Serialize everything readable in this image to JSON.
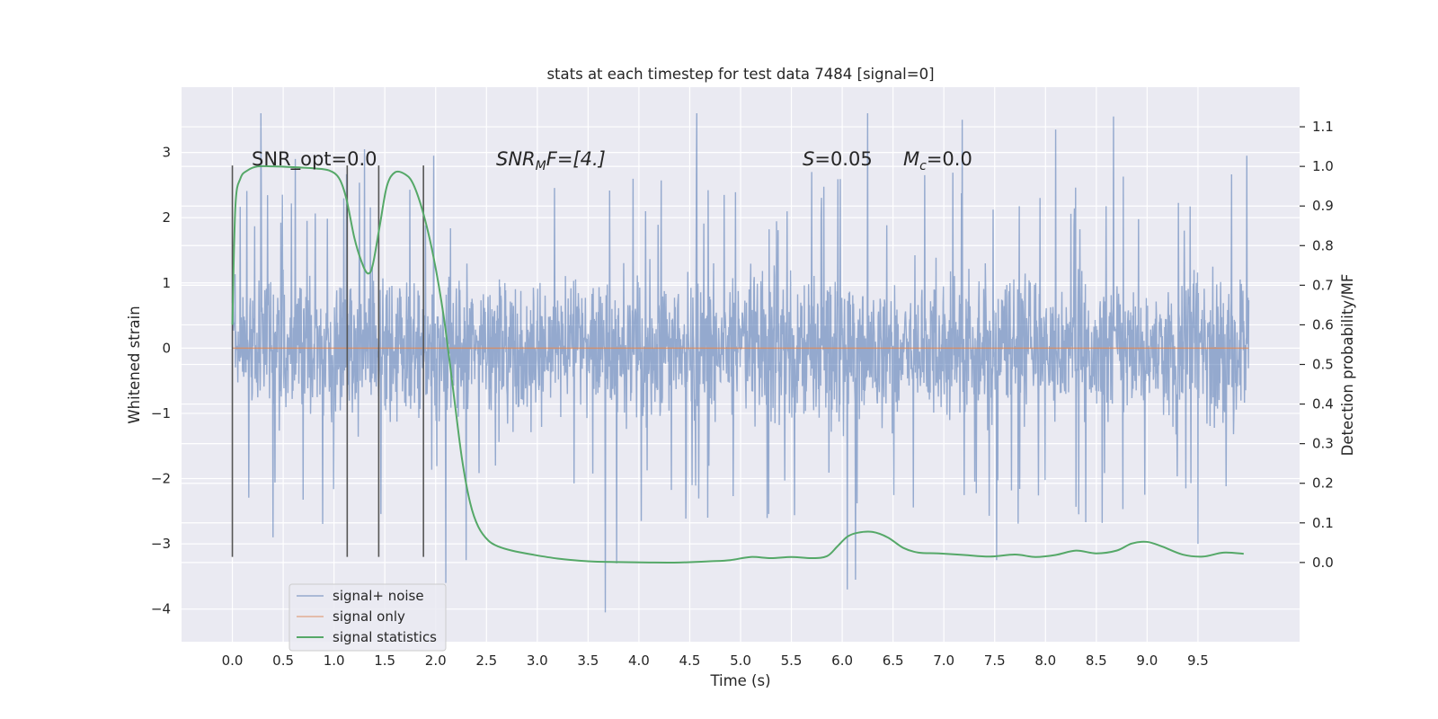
{
  "chart_data": {
    "type": "line",
    "title": "stats at each timestep for test data 7484 [signal=0]",
    "xlabel": "Time (s)",
    "ylabel": "Whitened strain",
    "y2label": "Detection probability/MF",
    "xlim": [
      -0.5,
      10.5
    ],
    "ylim": [
      -4.5,
      4.0
    ],
    "y2lim": [
      -0.2,
      1.2
    ],
    "x_ticks": [
      0.0,
      0.5,
      1.0,
      1.5,
      2.0,
      2.5,
      3.0,
      3.5,
      4.0,
      4.5,
      5.0,
      5.5,
      6.0,
      6.5,
      7.0,
      7.5,
      8.0,
      8.5,
      9.0,
      9.5
    ],
    "x_tick_labels": [
      "0.0",
      "0.5",
      "1.0",
      "1.5",
      "2.0",
      "2.5",
      "3.0",
      "3.5",
      "4.0",
      "4.5",
      "5.0",
      "5.5",
      "6.0",
      "6.5",
      "7.0",
      "7.5",
      "8.0",
      "8.5",
      "9.0",
      "9.5"
    ],
    "y_ticks": [
      -4,
      -3,
      -2,
      -1,
      0,
      1,
      2,
      3
    ],
    "y_tick_labels": [
      "−4",
      "−3",
      "−2",
      "−1",
      "0",
      "1",
      "2",
      "3"
    ],
    "y2_ticks": [
      0.0,
      0.1,
      0.2,
      0.3,
      0.4,
      0.5,
      0.6,
      0.7,
      0.8,
      0.9,
      1.0,
      1.1
    ],
    "y2_tick_labels": [
      "0.0",
      "0.1",
      "0.2",
      "0.3",
      "0.4",
      "0.5",
      "0.6",
      "0.7",
      "0.8",
      "0.9",
      "1.0",
      "1.1"
    ],
    "grid": true,
    "legend_position": "lower-left",
    "annotations": {
      "snr_opt": "SNR_opt=0.0",
      "snr_mf_base": "SNR",
      "snr_mf_sub": "M",
      "snr_mf_rest": "F=[4.]",
      "s_label": "S",
      "s_value": "=0.05",
      "mc_base": "M",
      "mc_sub": "c",
      "mc_value": "=0.0"
    },
    "vertical_markers_x": [
      0.0,
      1.13,
      1.44,
      1.88
    ],
    "vertical_markers_range": [
      -3.2,
      2.8
    ],
    "series": [
      {
        "name": "signal+ noise",
        "color": "#4c72b0",
        "x_range": [
          0.0,
          10.0
        ],
        "band_envelope_upper": 1.6,
        "band_envelope_lower": -1.5,
        "peaks": [
          {
            "x": 0.28,
            "y": 3.6
          },
          {
            "x": 0.62,
            "y": 2.9
          },
          {
            "x": 1.3,
            "y": 3.05
          },
          {
            "x": 1.98,
            "y": 2.95
          },
          {
            "x": 4.57,
            "y": 3.6
          },
          {
            "x": 5.7,
            "y": 2.7
          },
          {
            "x": 6.25,
            "y": 3.6
          },
          {
            "x": 7.18,
            "y": 3.5
          },
          {
            "x": 8.1,
            "y": 3.35
          },
          {
            "x": 8.67,
            "y": 3.55
          },
          {
            "x": 9.98,
            "y": 2.95
          }
        ],
        "troughs": [
          {
            "x": 0.4,
            "y": -2.9
          },
          {
            "x": 2.1,
            "y": -3.6
          },
          {
            "x": 2.3,
            "y": -3.25
          },
          {
            "x": 3.67,
            "y": -4.05
          },
          {
            "x": 3.78,
            "y": -3.3
          },
          {
            "x": 6.05,
            "y": -3.7
          },
          {
            "x": 6.13,
            "y": -3.55
          },
          {
            "x": 7.52,
            "y": -3.25
          },
          {
            "x": 9.5,
            "y": -3.0
          }
        ]
      },
      {
        "name": "signal only",
        "color": "#dd8452",
        "x": [
          0.0,
          10.0
        ],
        "y": [
          0.0,
          0.0
        ]
      },
      {
        "name": "signal statistics",
        "color": "#55a868",
        "axis": "right",
        "x": [
          0.0,
          0.03,
          0.08,
          0.15,
          0.25,
          0.4,
          0.6,
          0.8,
          0.95,
          1.05,
          1.12,
          1.2,
          1.27,
          1.33,
          1.38,
          1.45,
          1.52,
          1.6,
          1.7,
          1.78,
          1.88,
          1.98,
          2.08,
          2.18,
          2.26,
          2.34,
          2.42,
          2.52,
          2.62,
          2.75,
          2.95,
          3.2,
          3.5,
          3.8,
          4.1,
          4.4,
          4.7,
          4.9,
          5.1,
          5.3,
          5.5,
          5.7,
          5.85,
          5.95,
          6.05,
          6.15,
          6.3,
          6.45,
          6.6,
          6.75,
          6.95,
          7.2,
          7.45,
          7.7,
          7.9,
          8.1,
          8.3,
          8.5,
          8.7,
          8.85,
          9.0,
          9.15,
          9.35,
          9.55,
          9.75,
          9.95
        ],
        "y": [
          0.6,
          0.9,
          0.97,
          0.99,
          1.0,
          1.0,
          0.998,
          0.995,
          0.99,
          0.97,
          0.92,
          0.82,
          0.76,
          0.73,
          0.75,
          0.85,
          0.95,
          0.985,
          0.98,
          0.955,
          0.88,
          0.77,
          0.62,
          0.42,
          0.26,
          0.15,
          0.09,
          0.055,
          0.04,
          0.03,
          0.02,
          0.01,
          0.003,
          0.001,
          0.0,
          0.0,
          0.003,
          0.006,
          0.014,
          0.011,
          0.014,
          0.011,
          0.016,
          0.04,
          0.065,
          0.075,
          0.077,
          0.063,
          0.037,
          0.025,
          0.023,
          0.019,
          0.015,
          0.02,
          0.014,
          0.019,
          0.03,
          0.023,
          0.03,
          0.048,
          0.052,
          0.04,
          0.02,
          0.015,
          0.025,
          0.022
        ]
      }
    ]
  }
}
